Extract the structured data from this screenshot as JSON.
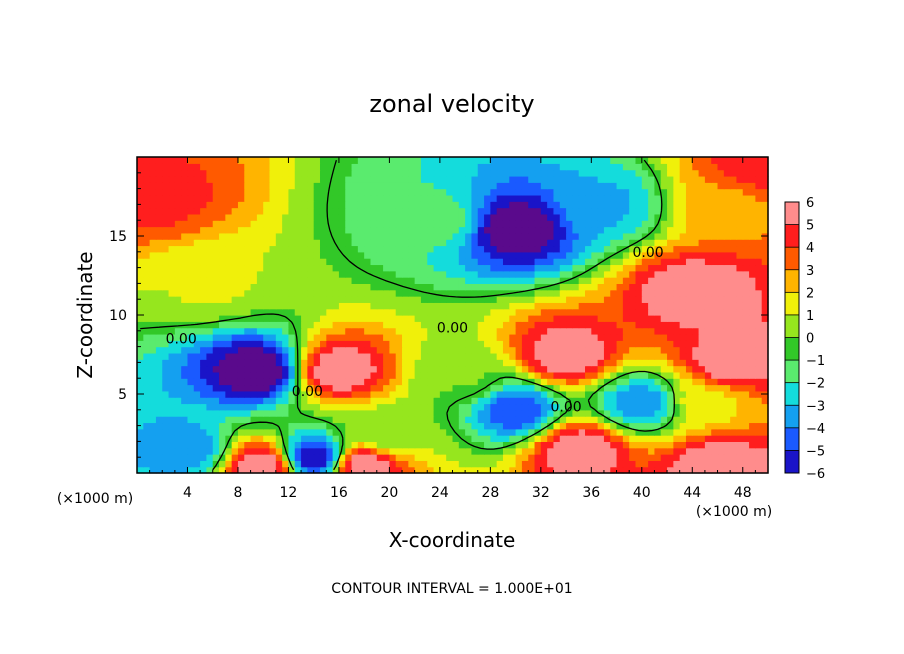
{
  "chart_data": {
    "type": "heatmap",
    "title": "zonal velocity",
    "xlabel": "X-coordinate",
    "ylabel": "Z-coordinate",
    "x_unit": "(×1000 m)",
    "y_unit": "(×1000 m)",
    "xlim": [
      0,
      50
    ],
    "ylim": [
      0,
      20
    ],
    "x_ticks": [
      4,
      8,
      12,
      16,
      20,
      24,
      28,
      32,
      36,
      40,
      44,
      48
    ],
    "y_ticks": [
      5,
      10,
      15
    ],
    "colorbar": {
      "ticks": [
        6,
        5,
        4,
        3,
        2,
        1,
        0,
        -1,
        -2,
        -3,
        -4,
        -5,
        -6
      ],
      "min": -6,
      "max": 6,
      "colors": [
        "#5a0a8c",
        "#1a14c8",
        "#1a5aff",
        "#14a0f0",
        "#14dcdc",
        "#5aeb6e",
        "#32c828",
        "#96e61e",
        "#f0f00a",
        "#ffb400",
        "#ff5a00",
        "#ff1e1e",
        "#ff8c8c"
      ]
    },
    "contour_labels": [
      {
        "text": "0.00",
        "x": 3.5,
        "z": 8.5
      },
      {
        "text": "0.00",
        "x": 13.5,
        "z": 5.2
      },
      {
        "text": "0.00",
        "x": 25,
        "z": 9.2
      },
      {
        "text": "0.00",
        "x": 34,
        "z": 4.2
      },
      {
        "text": "0.00",
        "x": 40.5,
        "z": 14.0
      }
    ],
    "features": [
      {
        "x": 1.5,
        "z": 17.5,
        "value": 4.5
      },
      {
        "x": 6,
        "z": 12,
        "value": 1.5
      },
      {
        "x": 24,
        "z": 16,
        "value": -1
      },
      {
        "x": 30,
        "z": 15.5,
        "value": -6
      },
      {
        "x": 37,
        "z": 17,
        "value": -2.5
      },
      {
        "x": 47,
        "z": 17,
        "value": 3
      },
      {
        "x": 49.5,
        "z": 19.5,
        "value": 5
      },
      {
        "x": 44,
        "z": 11.5,
        "value": 6
      },
      {
        "x": 9.5,
        "z": 6.5,
        "value": -6
      },
      {
        "x": 16,
        "z": 6.5,
        "value": 6
      },
      {
        "x": 34,
        "z": 7.5,
        "value": 6
      },
      {
        "x": 47,
        "z": 7,
        "value": 6
      },
      {
        "x": 35,
        "z": 1.5,
        "value": 6
      },
      {
        "x": 10,
        "z": 0.5,
        "value": 6
      },
      {
        "x": 18,
        "z": 0.5,
        "value": 6
      },
      {
        "x": 46,
        "z": 0.5,
        "value": 6
      },
      {
        "x": 14,
        "z": 1,
        "value": -5
      },
      {
        "x": 4,
        "z": 1.5,
        "value": -3
      },
      {
        "x": 20,
        "z": 2.5,
        "value": 0.5
      },
      {
        "x": 26,
        "z": 6,
        "value": 0.5
      },
      {
        "x": 40,
        "z": 4.5,
        "value": -3
      },
      {
        "x": 30,
        "z": 4,
        "value": -4
      },
      {
        "x": 45,
        "z": 4.5,
        "value": 2
      }
    ]
  },
  "footer": {
    "note": "CONTOUR INTERVAL = 1.000E+01"
  }
}
